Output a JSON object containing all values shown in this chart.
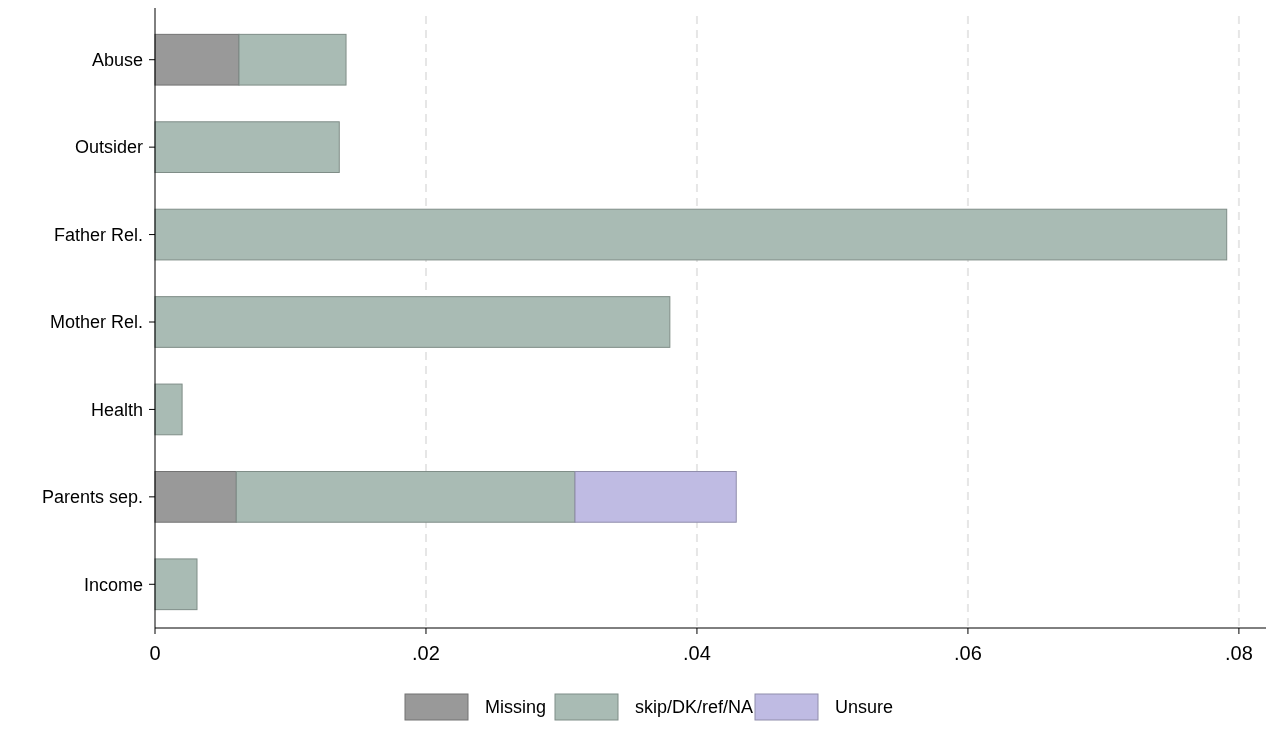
{
  "chart_data": {
    "type": "bar",
    "orientation": "horizontal",
    "stacked": true,
    "categories": [
      "Abuse",
      "Outsider",
      "Father Rel.",
      "Mother Rel.",
      "Health",
      "Parents sep.",
      "Income"
    ],
    "series": [
      {
        "name": "Missing",
        "color": "#999999",
        "values": [
          0.0062,
          0,
          0,
          0,
          0,
          0.006,
          0
        ]
      },
      {
        "name": "skip/DK/ref/NA",
        "color": "#a9bbb4",
        "values": [
          0.0079,
          0.0136,
          0.0791,
          0.038,
          0.002,
          0.025,
          0.0031
        ]
      },
      {
        "name": "Unsure",
        "color": "#bfbbe3",
        "values": [
          0,
          0,
          0,
          0,
          0,
          0.0119,
          0
        ]
      }
    ],
    "xlim": [
      0,
      0.082
    ],
    "xticks": [
      0,
      {
        "value": 0.02,
        "label": ".02"
      },
      {
        "value": 0.04,
        "label": ".04"
      },
      {
        "value": 0.06,
        "label": ".06"
      },
      {
        "value": 0.08,
        "label": ".08"
      }
    ],
    "grid": "x",
    "legend": "bottom"
  }
}
